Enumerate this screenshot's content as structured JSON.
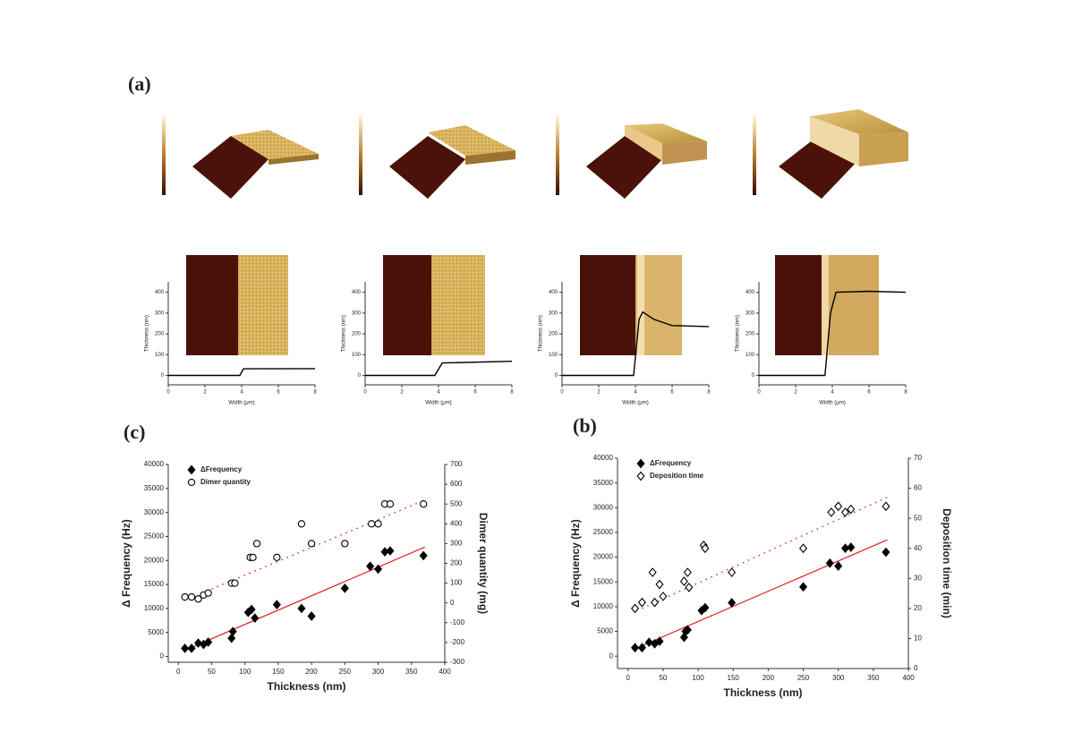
{
  "label": "(a)",
  "chart_data": [
    {
      "type": "line",
      "x_label": "Width (μm)",
      "y_label": "Thickness (nm)",
      "xlim": [
        0,
        8
      ],
      "xticks": [
        0,
        2,
        4,
        6,
        8
      ],
      "ylim": [
        -45,
        450
      ],
      "yticks": [
        0,
        100,
        200,
        300,
        400
      ],
      "color": "#000000",
      "x": [
        0,
        3.9,
        4.1,
        8
      ],
      "values": [
        0,
        0,
        32,
        33
      ]
    },
    {
      "type": "line",
      "x_label": "Width (μm)",
      "y_label": "Thickness (nm)",
      "xlim": [
        0,
        8
      ],
      "xticks": [
        0,
        2,
        4,
        6,
        8
      ],
      "ylim": [
        -45,
        450
      ],
      "yticks": [
        0,
        100,
        200,
        300,
        400
      ],
      "color": "#000000",
      "x": [
        0,
        3.8,
        4.2,
        8
      ],
      "values": [
        0,
        0,
        60,
        68
      ]
    },
    {
      "type": "line",
      "x_label": "Width (μm)",
      "y_label": "Thickness (nm)",
      "xlim": [
        0,
        8
      ],
      "xticks": [
        0,
        2,
        4,
        6,
        8
      ],
      "ylim": [
        -45,
        450
      ],
      "yticks": [
        0,
        100,
        200,
        300,
        400
      ],
      "color": "#000000",
      "x": [
        0,
        3.9,
        4.2,
        4.4,
        5.0,
        6.0,
        8
      ],
      "values": [
        0,
        0,
        270,
        305,
        270,
        240,
        235
      ]
    },
    {
      "type": "line",
      "x_label": "Width (μm)",
      "y_label": "Thickness (nm)",
      "xlim": [
        0,
        8
      ],
      "xticks": [
        0,
        2,
        4,
        6,
        8
      ],
      "ylim": [
        -45,
        450
      ],
      "yticks": [
        0,
        100,
        200,
        300,
        400
      ],
      "color": "#000000",
      "x": [
        0,
        3.6,
        3.9,
        4.2,
        6.0,
        8
      ],
      "values": [
        0,
        0,
        300,
        400,
        405,
        400
      ]
    },
    {
      "type": "scatter",
      "title": "(c)",
      "x_label": "Thickness (nm)",
      "y_label": "Δ Frequency (Hz)",
      "y2_label": "Dimer quantity (mg)",
      "legend": "upper left",
      "xlim": [
        -15,
        400
      ],
      "xticks": [
        0,
        50,
        100,
        150,
        200,
        250,
        300,
        350,
        400
      ],
      "ylim": [
        -1200,
        40000
      ],
      "yticks": [
        0,
        5000,
        10000,
        15000,
        20000,
        25000,
        30000,
        35000,
        40000
      ],
      "y2lim": [
        -300,
        700
      ],
      "y2ticks": [
        -300,
        -200,
        -100,
        0,
        100,
        200,
        300,
        400,
        500,
        600,
        700
      ],
      "series": [
        {
          "name": "ΔFrequency",
          "color": "#000000",
          "marker": "filled-diamond",
          "x": [
            10,
            20,
            30,
            38,
            45,
            80,
            82,
            105,
            110,
            115,
            148,
            185,
            200,
            250,
            288,
            300,
            310,
            318,
            368
          ],
          "values": [
            1700,
            1700,
            2800,
            2500,
            3000,
            3800,
            5200,
            9200,
            9800,
            8000,
            10800,
            10000,
            8400,
            14200,
            18800,
            18200,
            21800,
            22000,
            21000
          ],
          "fit": {
            "color": "#e02020",
            "dash": false,
            "x": [
              10,
              370
            ],
            "values": [
              1300,
              22800
            ]
          }
        },
        {
          "name": "Dimer quantity",
          "color": "#000000",
          "marker": "open-circle",
          "axis": "y2",
          "x": [
            10,
            20,
            30,
            38,
            45,
            80,
            85,
            108,
            112,
            118,
            148,
            185,
            200,
            250,
            290,
            300,
            310,
            318,
            368
          ],
          "values": [
            30,
            30,
            20,
            40,
            50,
            100,
            100,
            230,
            230,
            300,
            230,
            400,
            300,
            300,
            400,
            400,
            500,
            500,
            500
          ],
          "fit": {
            "color": "#e02020",
            "dash": true,
            "x": [
              50,
              370
            ],
            "values": [
              70,
              520
            ]
          }
        }
      ]
    },
    {
      "type": "scatter",
      "title": "(b)",
      "x_label": "Thickness (nm)",
      "y_label": "Δ Frequency (Hz)",
      "y2_label": "Deposition time (min)",
      "legend": "upper left",
      "xlim": [
        -15,
        400
      ],
      "xticks": [
        0,
        50,
        100,
        150,
        200,
        250,
        300,
        350,
        400
      ],
      "ylim": [
        -2500,
        40000
      ],
      "yticks": [
        0,
        5000,
        10000,
        15000,
        20000,
        25000,
        30000,
        35000,
        40000
      ],
      "y2lim": [
        0,
        70
      ],
      "y2ticks": [
        0,
        10,
        20,
        30,
        40,
        50,
        60,
        70
      ],
      "series": [
        {
          "name": "ΔFrequency",
          "color": "#000000",
          "marker": "filled-diamond",
          "x": [
            10,
            20,
            30,
            38,
            45,
            80,
            82,
            85,
            105,
            110,
            148,
            250,
            288,
            300,
            310,
            318,
            368
          ],
          "values": [
            1700,
            1700,
            2800,
            2500,
            3000,
            3800,
            5000,
            5300,
            9200,
            9800,
            10800,
            14000,
            18800,
            18200,
            21800,
            22000,
            21000
          ],
          "fit": {
            "color": "#e02020",
            "dash": false,
            "x": [
              10,
              370
            ],
            "values": [
              1500,
              23500
            ]
          }
        },
        {
          "name": "Deposition time",
          "color": "#000000",
          "marker": "open-diamond",
          "axis": "y2",
          "x": [
            10,
            20,
            35,
            38,
            45,
            50,
            80,
            85,
            87,
            108,
            110,
            148,
            250,
            290,
            300,
            310,
            318,
            368
          ],
          "values": [
            20,
            22,
            32,
            22,
            28,
            24,
            29,
            32,
            27,
            41,
            40,
            32,
            40,
            52,
            54,
            52,
            53,
            54
          ],
          "fit": {
            "color": "#e02020",
            "dash": true,
            "x": [
              20,
              370
            ],
            "values": [
              20,
              57
            ]
          }
        }
      ]
    }
  ]
}
